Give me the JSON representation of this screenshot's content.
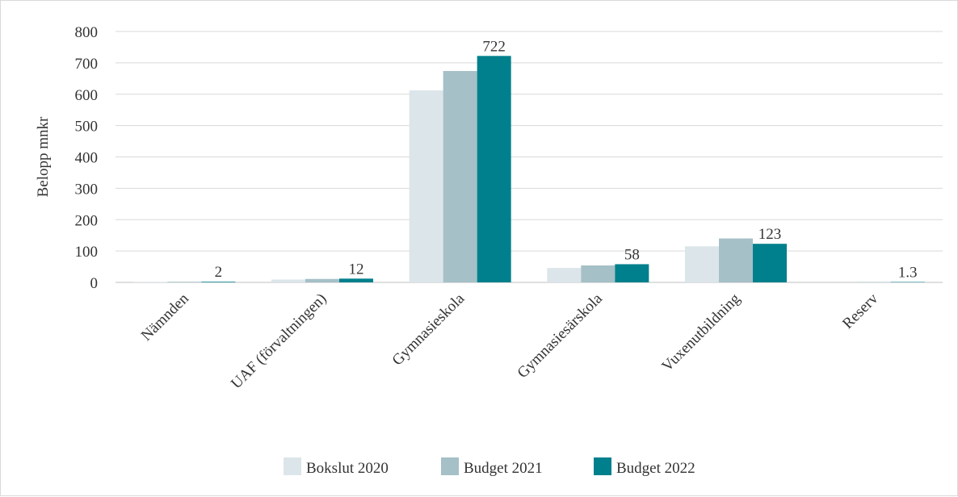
{
  "chart_data": {
    "type": "bar",
    "title": "",
    "xlabel": "",
    "ylabel": "Belopp mnkr",
    "ylim": [
      0,
      800
    ],
    "yticks": [
      0,
      100,
      200,
      300,
      400,
      500,
      600,
      700,
      800
    ],
    "grid": true,
    "legend_position": "bottom",
    "categories": [
      "Nämnden",
      "UAF (förvaltningen)",
      "Gymnasieskola",
      "Gymnasiesärskola",
      "Vuxenutbildning",
      "Reserv"
    ],
    "series": [
      {
        "name": "Bokslut 2020",
        "color": "#dbe5ea",
        "values": [
          1,
          9,
          612,
          46,
          115,
          0
        ]
      },
      {
        "name": "Budget 2021",
        "color": "#a5c0c6",
        "values": [
          2,
          11,
          674,
          54,
          140,
          1.3
        ]
      },
      {
        "name": "Budget 2022",
        "color": "#00808c",
        "values": [
          2,
          12,
          722,
          58,
          123,
          1.3
        ]
      }
    ],
    "data_labels": [
      {
        "category": 0,
        "text": "2"
      },
      {
        "category": 1,
        "text": "12"
      },
      {
        "category": 2,
        "text": "722"
      },
      {
        "category": 3,
        "text": "58"
      },
      {
        "category": 4,
        "text": "123"
      },
      {
        "category": 5,
        "text": "1.3"
      }
    ]
  }
}
